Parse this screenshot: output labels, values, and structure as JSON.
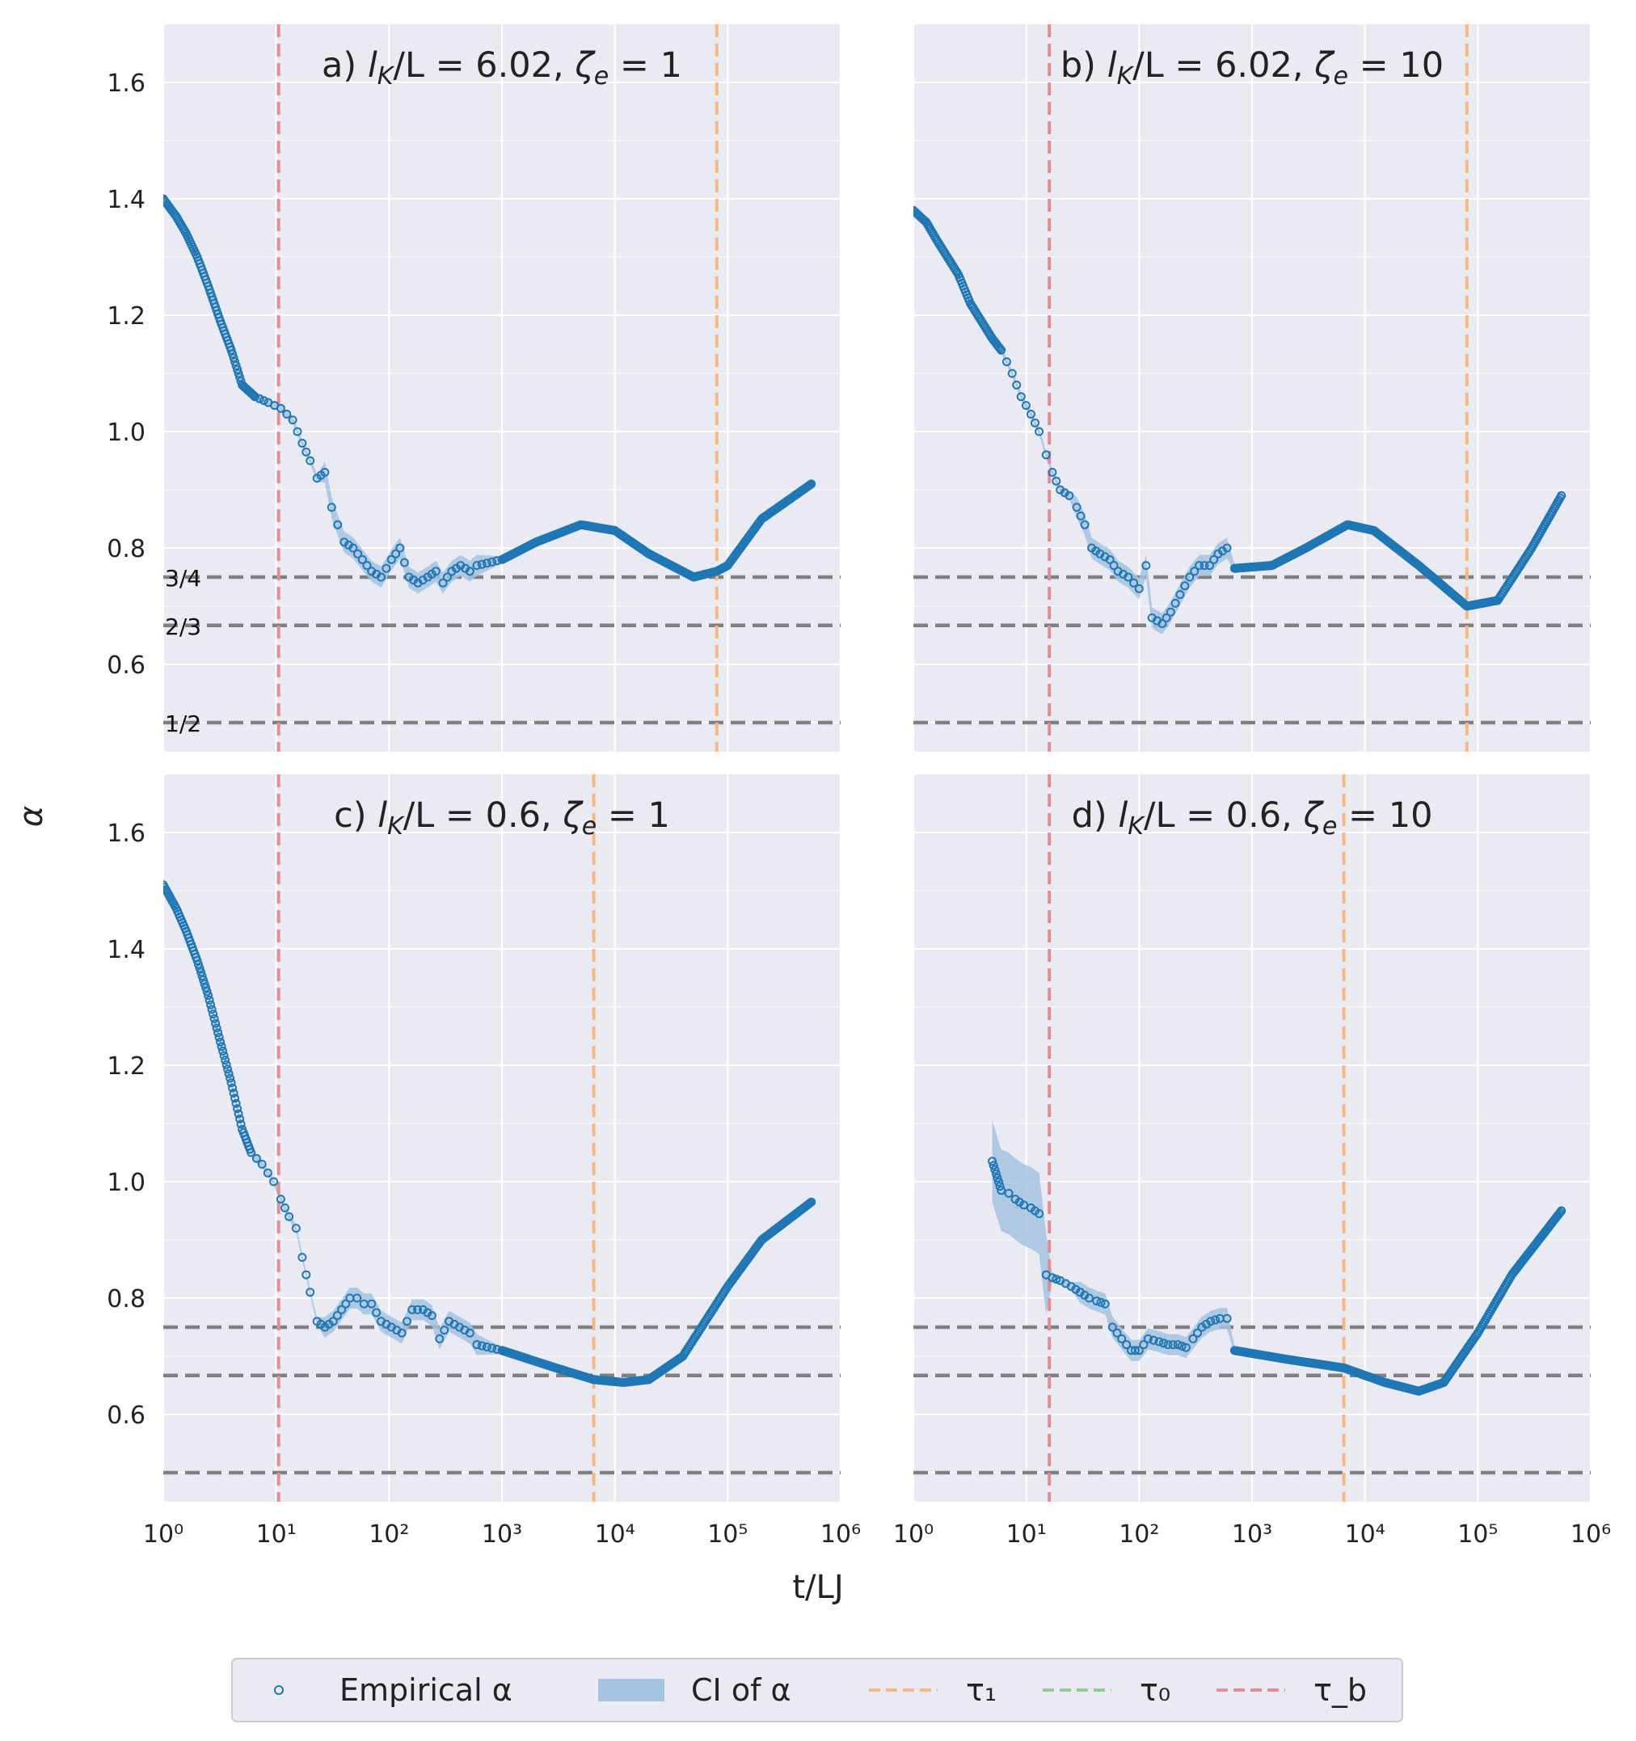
{
  "chart_data": {
    "type": "scatter",
    "xlabel": "t/LJ",
    "ylabel": "α",
    "xscale": "log",
    "xlim": [
      1,
      1000000
    ],
    "ylim": [
      0.45,
      1.7
    ],
    "x_ticks": [
      "10⁰",
      "10¹",
      "10²",
      "10³",
      "10⁴",
      "10⁵",
      "10⁶"
    ],
    "y_ticks": [
      "0.6",
      "0.8",
      "1.0",
      "1.2",
      "1.4",
      "1.6"
    ],
    "grid": true,
    "reference_lines": [
      {
        "label": "3/4",
        "value": 0.75
      },
      {
        "label": "2/3",
        "value": 0.667
      },
      {
        "label": "1/2",
        "value": 0.5
      }
    ],
    "legend": {
      "placement": "bottom-center",
      "entries": [
        {
          "label": "Empirical α",
          "color": "#1f77b4",
          "kind": "marker"
        },
        {
          "label": "CI of α",
          "color": "#a6c3e0",
          "kind": "patch"
        },
        {
          "label": "τ₁",
          "color": "#f5b97f",
          "kind": "dashed"
        },
        {
          "label": "τ₀",
          "color": "#93cc93",
          "kind": "dashed"
        },
        {
          "label": "τ_b",
          "color": "#e38c93",
          "kind": "dashed"
        }
      ]
    },
    "colors": {
      "points": "#1f77b4",
      "ci": "#a6c3e0",
      "tau1": "#f5b97f",
      "tau0": "#93cc93",
      "taub": "#e38c93",
      "reference": "#808080",
      "panel_bg": "#eaeaf2",
      "grid": "#ffffff"
    },
    "panels": [
      {
        "id": "a",
        "title": "a) l_K/L = 6.02, ζ_e = 1",
        "tau_b": 10.5,
        "tau_1": 80000,
        "series": [
          {
            "x": 1.0,
            "y": 1.4
          },
          {
            "x": 1.3,
            "y": 1.37
          },
          {
            "x": 1.6,
            "y": 1.34
          },
          {
            "x": 2.0,
            "y": 1.3
          },
          {
            "x": 2.5,
            "y": 1.25
          },
          {
            "x": 3.2,
            "y": 1.19
          },
          {
            "x": 4.0,
            "y": 1.14
          },
          {
            "x": 5.0,
            "y": 1.08
          },
          {
            "x": 6.5,
            "y": 1.06
          },
          {
            "x": 8.5,
            "y": 1.05
          },
          {
            "x": 11,
            "y": 1.04
          },
          {
            "x": 14,
            "y": 1.02
          },
          {
            "x": 17,
            "y": 0.98
          },
          {
            "x": 20,
            "y": 0.95
          },
          {
            "x": 23,
            "y": 0.92
          },
          {
            "x": 27,
            "y": 0.93
          },
          {
            "x": 31,
            "y": 0.87
          },
          {
            "x": 35,
            "y": 0.84
          },
          {
            "x": 40,
            "y": 0.81
          },
          {
            "x": 48,
            "y": 0.8
          },
          {
            "x": 58,
            "y": 0.78
          },
          {
            "x": 70,
            "y": 0.76
          },
          {
            "x": 85,
            "y": 0.75
          },
          {
            "x": 105,
            "y": 0.78
          },
          {
            "x": 125,
            "y": 0.8
          },
          {
            "x": 150,
            "y": 0.75
          },
          {
            "x": 180,
            "y": 0.74
          },
          {
            "x": 220,
            "y": 0.75
          },
          {
            "x": 260,
            "y": 0.76
          },
          {
            "x": 300,
            "y": 0.74
          },
          {
            "x": 360,
            "y": 0.76
          },
          {
            "x": 430,
            "y": 0.77
          },
          {
            "x": 520,
            "y": 0.76
          },
          {
            "x": 600,
            "y": 0.77
          },
          {
            "x": 1000,
            "y": 0.78
          },
          {
            "x": 2000,
            "y": 0.81
          },
          {
            "x": 5000,
            "y": 0.84
          },
          {
            "x": 10000,
            "y": 0.83
          },
          {
            "x": 20000,
            "y": 0.79
          },
          {
            "x": 50000,
            "y": 0.75
          },
          {
            "x": 80000,
            "y": 0.76
          },
          {
            "x": 100000,
            "y": 0.77
          },
          {
            "x": 200000,
            "y": 0.85
          },
          {
            "x": 550000,
            "y": 0.91
          }
        ]
      },
      {
        "id": "b",
        "title": "b) l_K/L = 6.02, ζ_e = 10",
        "tau_b": 16,
        "tau_1": 80000,
        "series": [
          {
            "x": 1.0,
            "y": 1.38
          },
          {
            "x": 1.3,
            "y": 1.36
          },
          {
            "x": 1.6,
            "y": 1.33
          },
          {
            "x": 2.0,
            "y": 1.3
          },
          {
            "x": 2.5,
            "y": 1.27
          },
          {
            "x": 3.2,
            "y": 1.22
          },
          {
            "x": 4.0,
            "y": 1.19
          },
          {
            "x": 5.0,
            "y": 1.16
          },
          {
            "x": 6.0,
            "y": 1.14
          },
          {
            "x": 7.5,
            "y": 1.1
          },
          {
            "x": 9.0,
            "y": 1.06
          },
          {
            "x": 11,
            "y": 1.03
          },
          {
            "x": 13,
            "y": 1.0
          },
          {
            "x": 15,
            "y": 0.96
          },
          {
            "x": 17,
            "y": 0.93
          },
          {
            "x": 20,
            "y": 0.9
          },
          {
            "x": 24,
            "y": 0.89
          },
          {
            "x": 28,
            "y": 0.87
          },
          {
            "x": 33,
            "y": 0.84
          },
          {
            "x": 38,
            "y": 0.8
          },
          {
            "x": 45,
            "y": 0.79
          },
          {
            "x": 55,
            "y": 0.78
          },
          {
            "x": 65,
            "y": 0.76
          },
          {
            "x": 80,
            "y": 0.75
          },
          {
            "x": 100,
            "y": 0.73
          },
          {
            "x": 115,
            "y": 0.77
          },
          {
            "x": 130,
            "y": 0.68
          },
          {
            "x": 160,
            "y": 0.67
          },
          {
            "x": 190,
            "y": 0.69
          },
          {
            "x": 230,
            "y": 0.72
          },
          {
            "x": 280,
            "y": 0.75
          },
          {
            "x": 340,
            "y": 0.77
          },
          {
            "x": 420,
            "y": 0.77
          },
          {
            "x": 500,
            "y": 0.79
          },
          {
            "x": 600,
            "y": 0.8
          },
          {
            "x": 700,
            "y": 0.765
          },
          {
            "x": 1500,
            "y": 0.77
          },
          {
            "x": 3000,
            "y": 0.8
          },
          {
            "x": 7000,
            "y": 0.84
          },
          {
            "x": 12000,
            "y": 0.83
          },
          {
            "x": 30000,
            "y": 0.77
          },
          {
            "x": 80000,
            "y": 0.7
          },
          {
            "x": 150000,
            "y": 0.71
          },
          {
            "x": 300000,
            "y": 0.8
          },
          {
            "x": 550000,
            "y": 0.89
          }
        ]
      },
      {
        "id": "c",
        "title": "c) l_K/L = 0.6, ζ_e = 1",
        "tau_b": 10.5,
        "tau_1": 6500,
        "series": [
          {
            "x": 1.0,
            "y": 1.51
          },
          {
            "x": 1.3,
            "y": 1.47
          },
          {
            "x": 1.6,
            "y": 1.43
          },
          {
            "x": 2.0,
            "y": 1.38
          },
          {
            "x": 2.5,
            "y": 1.32
          },
          {
            "x": 3.2,
            "y": 1.24
          },
          {
            "x": 4.0,
            "y": 1.17
          },
          {
            "x": 5.0,
            "y": 1.09
          },
          {
            "x": 6.0,
            "y": 1.05
          },
          {
            "x": 7.5,
            "y": 1.03
          },
          {
            "x": 9.5,
            "y": 1.0
          },
          {
            "x": 11,
            "y": 0.97
          },
          {
            "x": 13,
            "y": 0.94
          },
          {
            "x": 15,
            "y": 0.92
          },
          {
            "x": 17,
            "y": 0.87
          },
          {
            "x": 20,
            "y": 0.81
          },
          {
            "x": 23,
            "y": 0.76
          },
          {
            "x": 27,
            "y": 0.75
          },
          {
            "x": 32,
            "y": 0.76
          },
          {
            "x": 38,
            "y": 0.78
          },
          {
            "x": 45,
            "y": 0.8
          },
          {
            "x": 52,
            "y": 0.8
          },
          {
            "x": 60,
            "y": 0.79
          },
          {
            "x": 70,
            "y": 0.79
          },
          {
            "x": 85,
            "y": 0.76
          },
          {
            "x": 105,
            "y": 0.75
          },
          {
            "x": 130,
            "y": 0.74
          },
          {
            "x": 160,
            "y": 0.78
          },
          {
            "x": 200,
            "y": 0.78
          },
          {
            "x": 240,
            "y": 0.77
          },
          {
            "x": 280,
            "y": 0.73
          },
          {
            "x": 340,
            "y": 0.76
          },
          {
            "x": 420,
            "y": 0.75
          },
          {
            "x": 520,
            "y": 0.74
          },
          {
            "x": 600,
            "y": 0.72
          },
          {
            "x": 1000,
            "y": 0.71
          },
          {
            "x": 3000,
            "y": 0.68
          },
          {
            "x": 6500,
            "y": 0.66
          },
          {
            "x": 12000,
            "y": 0.655
          },
          {
            "x": 20000,
            "y": 0.66
          },
          {
            "x": 40000,
            "y": 0.7
          },
          {
            "x": 100000,
            "y": 0.82
          },
          {
            "x": 200000,
            "y": 0.9
          },
          {
            "x": 550000,
            "y": 0.965
          }
        ]
      },
      {
        "id": "d",
        "title": "d) l_K/L = 0.6, ζ_e = 10",
        "tau_b": 16,
        "tau_1": 6500,
        "series": [
          {
            "x": 5.0,
            "y": 1.035
          },
          {
            "x": 6.0,
            "y": 0.985
          },
          {
            "x": 7.0,
            "y": 0.98
          },
          {
            "x": 8.0,
            "y": 0.97
          },
          {
            "x": 9.5,
            "y": 0.96
          },
          {
            "x": 11,
            "y": 0.955
          },
          {
            "x": 13,
            "y": 0.945
          },
          {
            "x": 15,
            "y": 0.84
          },
          {
            "x": 17,
            "y": 0.835
          },
          {
            "x": 20,
            "y": 0.83
          },
          {
            "x": 25,
            "y": 0.82
          },
          {
            "x": 30,
            "y": 0.81
          },
          {
            "x": 36,
            "y": 0.8
          },
          {
            "x": 42,
            "y": 0.795
          },
          {
            "x": 50,
            "y": 0.79
          },
          {
            "x": 58,
            "y": 0.75
          },
          {
            "x": 70,
            "y": 0.73
          },
          {
            "x": 85,
            "y": 0.71
          },
          {
            "x": 100,
            "y": 0.71
          },
          {
            "x": 120,
            "y": 0.73
          },
          {
            "x": 150,
            "y": 0.725
          },
          {
            "x": 180,
            "y": 0.72
          },
          {
            "x": 220,
            "y": 0.72
          },
          {
            "x": 260,
            "y": 0.715
          },
          {
            "x": 300,
            "y": 0.73
          },
          {
            "x": 360,
            "y": 0.75
          },
          {
            "x": 430,
            "y": 0.76
          },
          {
            "x": 520,
            "y": 0.765
          },
          {
            "x": 600,
            "y": 0.765
          },
          {
            "x": 700,
            "y": 0.71
          },
          {
            "x": 2000,
            "y": 0.695
          },
          {
            "x": 6500,
            "y": 0.68
          },
          {
            "x": 15000,
            "y": 0.655
          },
          {
            "x": 30000,
            "y": 0.64
          },
          {
            "x": 50000,
            "y": 0.655
          },
          {
            "x": 100000,
            "y": 0.74
          },
          {
            "x": 200000,
            "y": 0.84
          },
          {
            "x": 550000,
            "y": 0.95
          }
        ]
      }
    ]
  }
}
